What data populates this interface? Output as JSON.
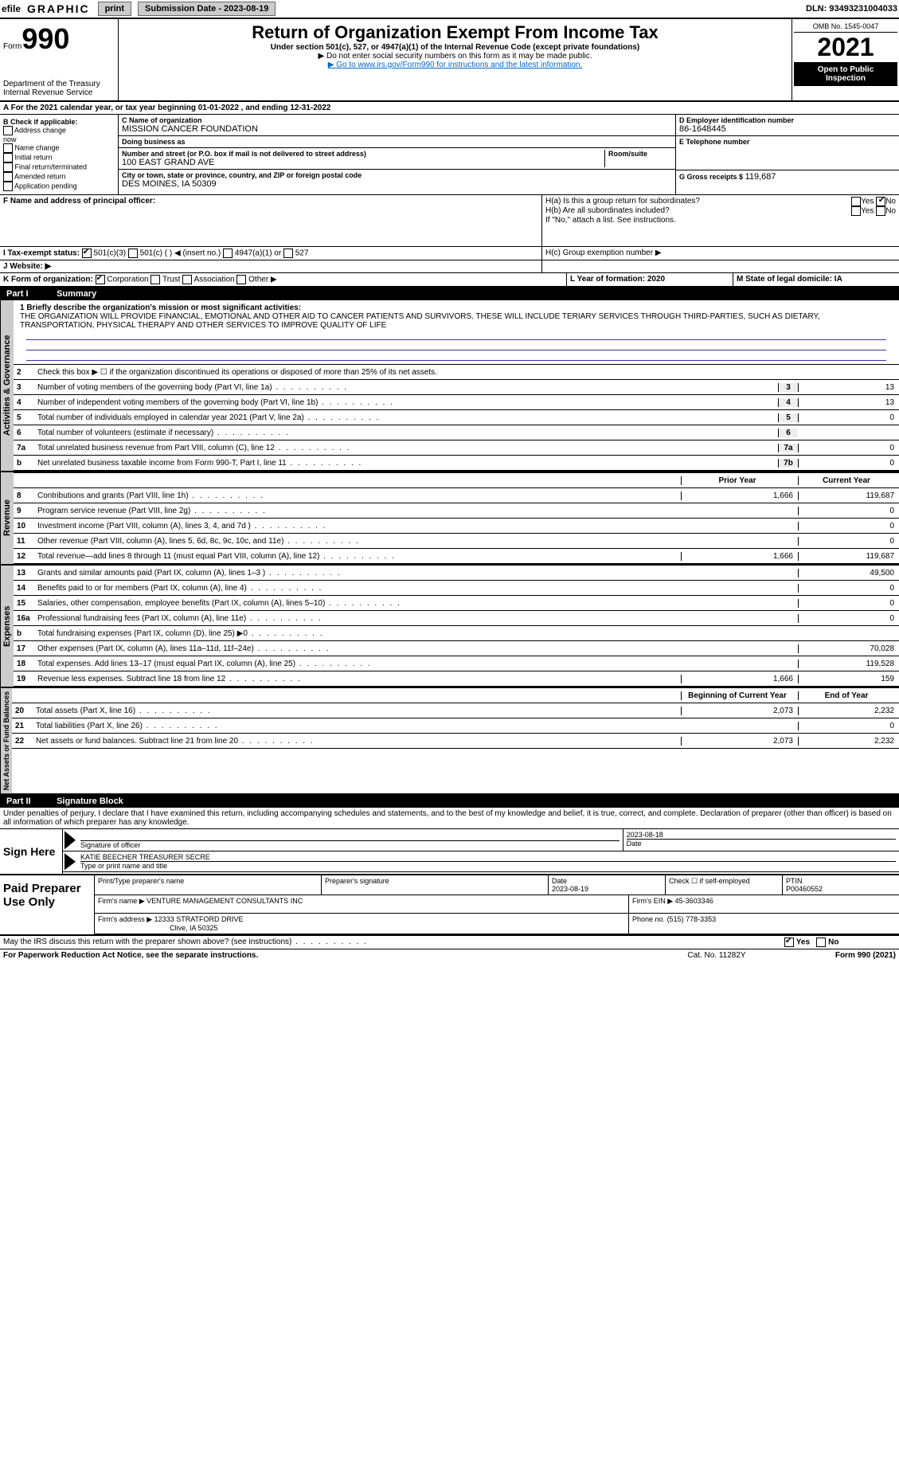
{
  "topbar": {
    "efile": "efile",
    "graphic": "GRAPHIC",
    "print": "print",
    "submission_label": "Submission Date - 2023-08-19",
    "dln": "DLN: 93493231004033"
  },
  "header": {
    "form": "Form",
    "num": "990",
    "dept": "Department of the Treasury",
    "irs": "Internal Revenue Service",
    "title": "Return of Organization Exempt From Income Tax",
    "subtitle": "Under section 501(c), 527, or 4947(a)(1) of the Internal Revenue Code (except private foundations)",
    "warn": "▶ Do not enter social security numbers on this form as it may be made public.",
    "goto": "▶ Go to www.irs.gov/Form990 for instructions and the latest information.",
    "omb": "OMB No. 1545-0047",
    "year": "2021",
    "public": "Open to Public Inspection"
  },
  "line_a": "A For the 2021 calendar year, or tax year beginning 01-01-2022   , and ending 12-31-2022",
  "box_b": {
    "label": "B Check if applicable:",
    "addr": "Address change",
    "name": "Name change",
    "init": "Initial return",
    "final": "Final return/terminated",
    "amend": "Amended return",
    "app": "Application pending"
  },
  "box_c": {
    "label_name": "C Name of organization",
    "name": "MISSION CANCER FOUNDATION",
    "dba_label": "Doing business as",
    "dba": "",
    "street_label": "Number and street (or P.O. box if mail is not delivered to street address)",
    "room_label": "Room/suite",
    "street": "100 EAST GRAND AVE",
    "city_label": "City or town, state or province, country, and ZIP or foreign postal code",
    "city": "DES MOINES, IA  50309"
  },
  "box_d": {
    "label": "D Employer identification number",
    "ein": "86-1648445",
    "tel_label": "E Telephone number",
    "tel": "",
    "gross_label": "G Gross receipts $",
    "gross": "119,687"
  },
  "box_f": {
    "label": "F  Name and address of principal officer:",
    "val": ""
  },
  "box_h": {
    "a": "H(a)  Is this a group return for subordinates?",
    "b": "H(b)  Are all subordinates included?",
    "note": "If \"No,\" attach a list. See instructions.",
    "c": "H(c)  Group exemption number ▶",
    "yes": "Yes",
    "no": "No"
  },
  "box_i": {
    "label": "I  Tax-exempt status:",
    "c3": "501(c)(3)",
    "c": "501(c) (  ) ◀ (insert no.)",
    "a1": "4947(a)(1) or",
    "527": "527"
  },
  "box_j": {
    "label": "J  Website: ▶"
  },
  "box_k": {
    "label": "K Form of organization:",
    "corp": "Corporation",
    "trust": "Trust",
    "assoc": "Association",
    "other": "Other ▶"
  },
  "box_l": {
    "label": "L Year of formation: 2020"
  },
  "box_m": {
    "label": "M State of legal domicile: IA"
  },
  "part1": {
    "title": "Part I",
    "name": "Summary"
  },
  "summary": {
    "l1": "1 Briefly describe the organization's mission or most significant activities:",
    "mission": "THE ORGANIZATION WILL PROVIDE FINANCIAL, EMOTIONAL AND OTHER AID TO CANCER PATIENTS AND SURVIVORS. THESE WILL INCLUDE TERIARY SERVICES THROUGH THIRD-PARTIES, SUCH AS DIETARY, TRANSPORTATION, PHYSICAL THERAPY AND OTHER SERVICES TO IMPROVE QUALITY OF LIFE",
    "l2": "Check this box ▶ ☐ if the organization discontinued its operations or disposed of more than 25% of its net assets.",
    "rows": [
      {
        "n": "3",
        "d": "Number of voting members of the governing body (Part VI, line 1a)",
        "b": "3",
        "v": "13"
      },
      {
        "n": "4",
        "d": "Number of independent voting members of the governing body (Part VI, line 1b)",
        "b": "4",
        "v": "13"
      },
      {
        "n": "5",
        "d": "Total number of individuals employed in calendar year 2021 (Part V, line 2a)",
        "b": "5",
        "v": "0"
      },
      {
        "n": "6",
        "d": "Total number of volunteers (estimate if necessary)",
        "b": "6",
        "v": ""
      },
      {
        "n": "7a",
        "d": "Total unrelated business revenue from Part VIII, column (C), line 12",
        "b": "7a",
        "v": "0"
      },
      {
        "n": "b",
        "d": "Net unrelated business taxable income from Form 990-T, Part I, line 11",
        "b": "7b",
        "v": "0"
      }
    ],
    "prior_h": "Prior Year",
    "curr_h": "Current Year",
    "vtab_ag": "Activities & Governance",
    "vtab_rev": "Revenue",
    "vtab_exp": "Expenses",
    "vtab_net": "Net Assets or Fund Balances",
    "revenue": [
      {
        "n": "8",
        "d": "Contributions and grants (Part VIII, line 1h)",
        "p": "1,666",
        "c": "119,687"
      },
      {
        "n": "9",
        "d": "Program service revenue (Part VIII, line 2g)",
        "p": "",
        "c": "0"
      },
      {
        "n": "10",
        "d": "Investment income (Part VIII, column (A), lines 3, 4, and 7d )",
        "p": "",
        "c": "0"
      },
      {
        "n": "11",
        "d": "Other revenue (Part VIII, column (A), lines 5, 6d, 8c, 9c, 10c, and 11e)",
        "p": "",
        "c": "0"
      },
      {
        "n": "12",
        "d": "Total revenue—add lines 8 through 11 (must equal Part VIII, column (A), line 12)",
        "p": "1,666",
        "c": "119,687"
      }
    ],
    "expenses": [
      {
        "n": "13",
        "d": "Grants and similar amounts paid (Part IX, column (A), lines 1–3 )",
        "p": "",
        "c": "49,500"
      },
      {
        "n": "14",
        "d": "Benefits paid to or for members (Part IX, column (A), line 4)",
        "p": "",
        "c": "0"
      },
      {
        "n": "15",
        "d": "Salaries, other compensation, employee benefits (Part IX, column (A), lines 5–10)",
        "p": "",
        "c": "0"
      },
      {
        "n": "16a",
        "d": "Professional fundraising fees (Part IX, column (A), line 11e)",
        "p": "",
        "c": "0"
      },
      {
        "n": "b",
        "d": "Total fundraising expenses (Part IX, column (D), line 25) ▶0",
        "p": "grey",
        "c": "grey"
      },
      {
        "n": "17",
        "d": "Other expenses (Part IX, column (A), lines 11a–11d, 11f–24e)",
        "p": "",
        "c": "70,028"
      },
      {
        "n": "18",
        "d": "Total expenses. Add lines 13–17 (must equal Part IX, column (A), line 25)",
        "p": "",
        "c": "119,528"
      },
      {
        "n": "19",
        "d": "Revenue less expenses. Subtract line 18 from line 12",
        "p": "1,666",
        "c": "159"
      }
    ],
    "begin_h": "Beginning of Current Year",
    "end_h": "End of Year",
    "net": [
      {
        "n": "20",
        "d": "Total assets (Part X, line 16)",
        "p": "2,073",
        "c": "2,232"
      },
      {
        "n": "21",
        "d": "Total liabilities (Part X, line 26)",
        "p": "",
        "c": "0"
      },
      {
        "n": "22",
        "d": "Net assets or fund balances. Subtract line 21 from line 20",
        "p": "2,073",
        "c": "2,232"
      }
    ]
  },
  "part2": {
    "title": "Part II",
    "name": "Signature Block",
    "decl": "Under penalties of perjury, I declare that I have examined this return, including accompanying schedules and statements, and to the best of my knowledge and belief, it is true, correct, and complete. Declaration of preparer (other than officer) is based on all information of which preparer has any knowledge."
  },
  "sign": {
    "label": "Sign Here",
    "sig_off": "Signature of officer",
    "date": "Date",
    "date_val": "2023-08-18",
    "name": "KATIE BEECHER TREASURER SECRE",
    "name_label": "Type or print name and title"
  },
  "paid": {
    "label": "Paid Preparer Use Only",
    "h1": "Print/Type preparer's name",
    "h2": "Preparer's signature",
    "h3": "Date",
    "h3v": "2023-08-19",
    "h4": "Check ☐ if self-employed",
    "h5": "PTIN",
    "h5v": "P00460552",
    "firm_name_l": "Firm's name    ▶",
    "firm_name": "VENTURE MANAGEMENT CONSULTANTS INC",
    "firm_ein_l": "Firm's EIN ▶",
    "firm_ein": "45-3603346",
    "firm_addr_l": "Firm's address ▶",
    "firm_addr": "12333 STRATFORD DRIVE",
    "firm_city": "Clive, IA  50325",
    "phone_l": "Phone no.",
    "phone": "(515) 778-3353"
  },
  "footer": {
    "q": "May the IRS discuss this return with the preparer shown above? (see instructions)",
    "yes": "Yes",
    "no": "No",
    "paperwork": "For Paperwork Reduction Act Notice, see the separate instructions.",
    "cat": "Cat. No. 11282Y",
    "form": "Form 990 (2021)"
  }
}
